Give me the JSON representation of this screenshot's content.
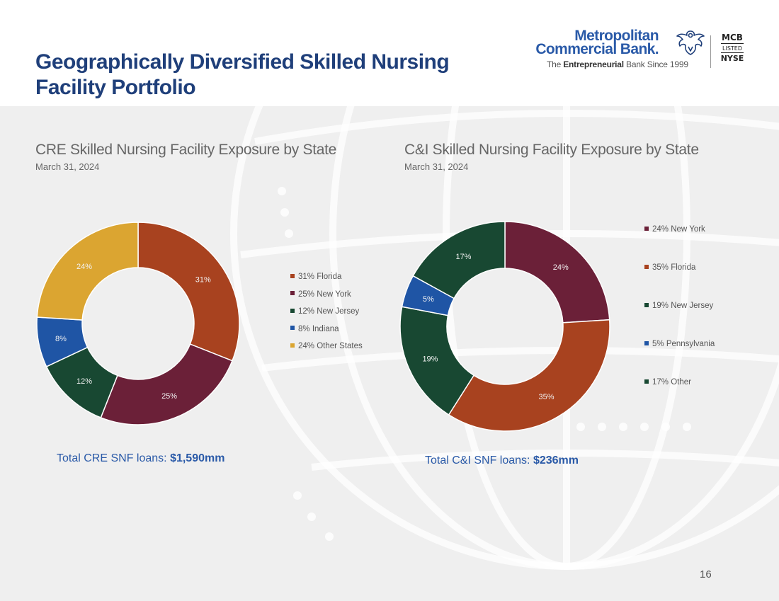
{
  "header": {
    "title": "Geographically Diversified Skilled Nursing Facility Portfolio",
    "logo": {
      "line1": "Metropolitan",
      "line2": "Commercial Bank.",
      "tagline_prefix": "The ",
      "tagline_bold": "Entrepreneurial",
      "tagline_suffix": " Bank Since 1999",
      "ticker": "MCB",
      "listed": "LISTED",
      "exchange": "NYSE",
      "icon": "eagle-icon"
    }
  },
  "colors": {
    "title_blue": "#1f3f7a",
    "accent_blue": "#2a5aa8",
    "florida": "#a8421f",
    "new_york": "#6b2038",
    "new_jersey": "#184832",
    "indiana_pennsylvania": "#1f55a5",
    "other": "#dba531"
  },
  "chart_data": [
    {
      "type": "pie",
      "variant": "donut",
      "title": "CRE Skilled Nursing Facility Exposure by State",
      "subtitle": "March 31, 2024",
      "categories": [
        "Florida",
        "New York",
        "New Jersey",
        "Indiana",
        "Other States"
      ],
      "values": [
        31,
        25,
        12,
        8,
        24
      ],
      "slice_labels": [
        "31%",
        "25%",
        "12%",
        "8%",
        "24%"
      ],
      "legend": [
        "31% Florida",
        "25% New York",
        "12% New Jersey",
        "8% Indiana",
        "24% Other States"
      ],
      "legend_position": "right",
      "colors": [
        "#a8421f",
        "#6b2038",
        "#184832",
        "#1f55a5",
        "#dba531"
      ],
      "total_label": "Total CRE SNF loans: ",
      "total_value": "$1,590mm"
    },
    {
      "type": "pie",
      "variant": "donut",
      "title": "C&I Skilled Nursing Facility Exposure by State",
      "subtitle": "March 31, 2024",
      "categories": [
        "New York",
        "Florida",
        "New Jersey",
        "Pennsylvania",
        "Other"
      ],
      "values": [
        24,
        35,
        19,
        5,
        17
      ],
      "slice_labels": [
        "24%",
        "35%",
        "19%",
        "5%",
        "17%"
      ],
      "legend": [
        "24% New York",
        "35% Florida",
        "19% New Jersey",
        "5% Pennsylvania",
        "17% Other"
      ],
      "legend_position": "right",
      "colors": [
        "#6b2038",
        "#a8421f",
        "#184832",
        "#1f55a5",
        "#184832"
      ],
      "total_label": "Total C&I SNF loans: ",
      "total_value": "$236mm"
    }
  ],
  "footer": {
    "page_number": "16"
  }
}
